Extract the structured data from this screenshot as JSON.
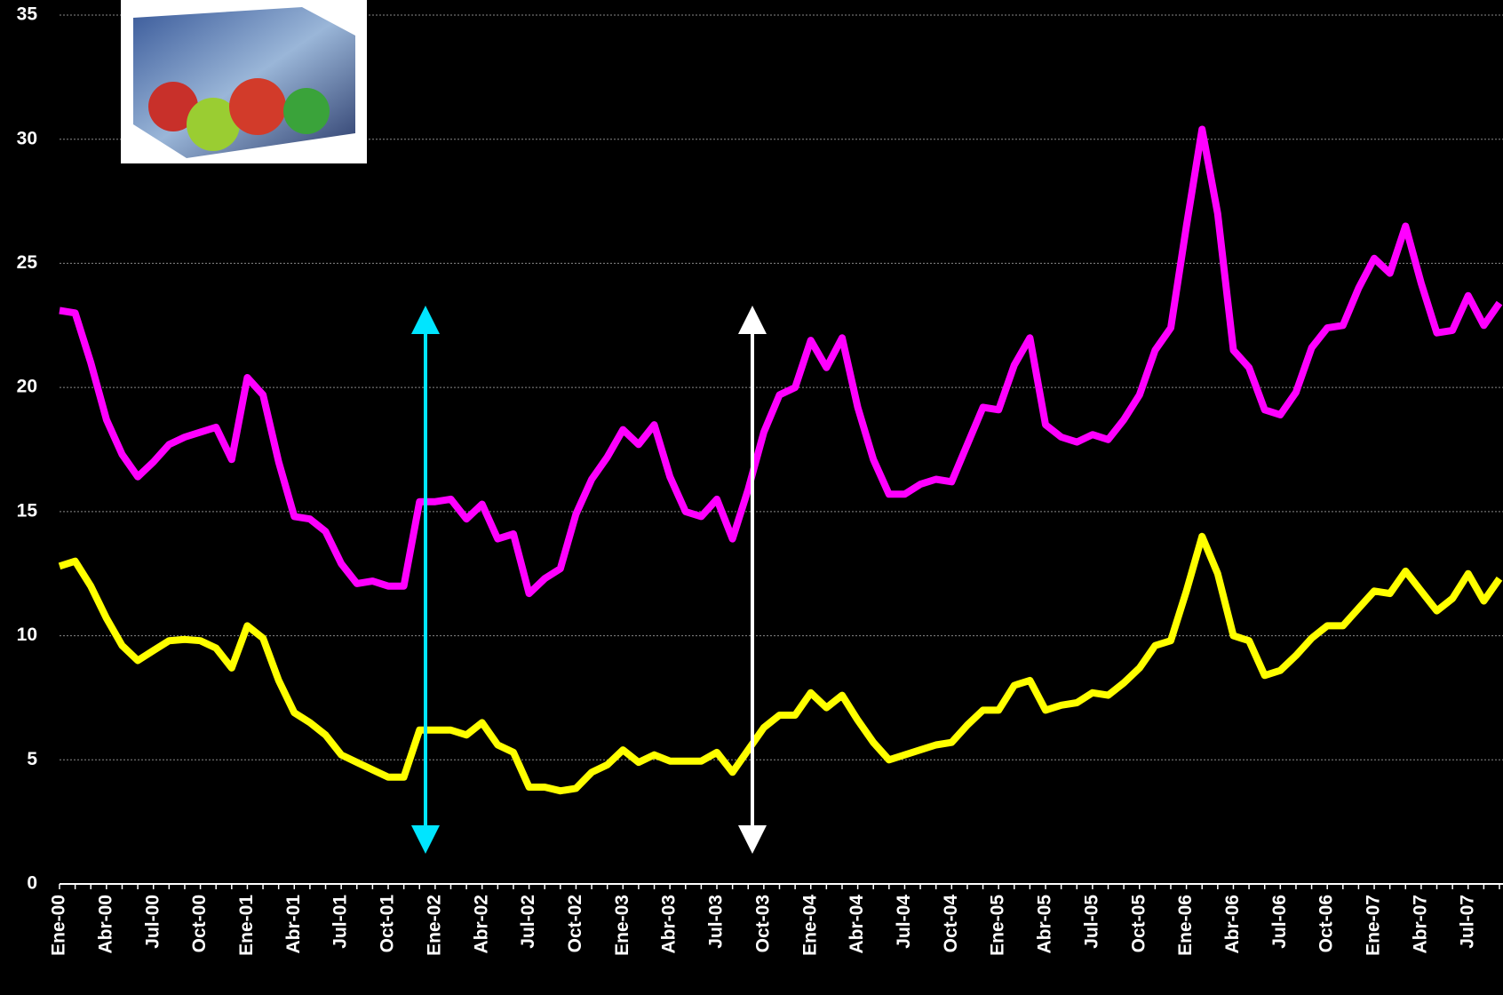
{
  "chart_data": {
    "type": "line",
    "categories": [
      "Ene-00",
      null,
      null,
      "Abr-00",
      null,
      null,
      "Jul-00",
      null,
      null,
      "Oct-00",
      null,
      null,
      "Ene-01",
      null,
      null,
      "Abr-01",
      null,
      null,
      "Jul-01",
      null,
      null,
      "Oct-01",
      null,
      null,
      "Ene-02",
      null,
      null,
      "Abr-02",
      null,
      null,
      "Jul-02",
      null,
      null,
      "Oct-02",
      null,
      null,
      "Ene-03",
      null,
      null,
      "Abr-03",
      null,
      null,
      "Jul-03",
      null,
      null,
      "Oct-03",
      null,
      null,
      "Ene-04",
      null,
      null,
      "Abr-04",
      null,
      null,
      "Jul-04",
      null,
      null,
      "Oct-04",
      null,
      null,
      "Ene-05",
      null,
      null,
      "Abr-05",
      null,
      null,
      "Jul-05",
      null,
      null,
      "Oct-05",
      null,
      null,
      "Ene-06",
      null,
      null,
      "Abr-06",
      null,
      null,
      "Jul-06",
      null,
      null,
      "Oct-06",
      null,
      null,
      "Ene-07",
      null,
      null,
      "Abr-07",
      null,
      null,
      "Jul-07",
      null,
      null
    ],
    "series": [
      {
        "color": "#ff00ff",
        "values": [
          23.1,
          23.0,
          21.0,
          18.7,
          17.3,
          16.4,
          17.0,
          17.7,
          18.0,
          18.2,
          18.4,
          17.1,
          20.4,
          19.7,
          17.0,
          14.8,
          14.7,
          14.2,
          12.9,
          12.1,
          12.2,
          12.0,
          12.0,
          15.4,
          15.4,
          15.5,
          14.7,
          15.3,
          13.9,
          14.1,
          11.7,
          12.3,
          12.7,
          14.9,
          16.3,
          17.2,
          18.3,
          17.7,
          18.5,
          16.4,
          15.0,
          14.8,
          15.5,
          13.9,
          15.9,
          18.2,
          19.7,
          20.0,
          21.9,
          20.8,
          22.0,
          19.2,
          17.1,
          15.7,
          15.7,
          16.1,
          16.3,
          16.2,
          17.7,
          19.2,
          19.1,
          20.9,
          22.0,
          18.5,
          18.0,
          17.8,
          18.1,
          17.9,
          18.7,
          19.7,
          21.5,
          22.4,
          26.5,
          30.4,
          27.0,
          21.5,
          20.8,
          19.1,
          18.9,
          19.8,
          21.6,
          22.4,
          22.5,
          24.0,
          25.2,
          24.6,
          26.5,
          24.2,
          22.2,
          22.3,
          23.7,
          22.5,
          23.4
        ]
      },
      {
        "color": "#ffff00",
        "values": [
          12.8,
          13.0,
          12.0,
          10.7,
          9.6,
          9.0,
          9.4,
          9.8,
          9.85,
          9.8,
          9.5,
          8.7,
          10.4,
          9.9,
          8.2,
          6.9,
          6.5,
          6.0,
          5.2,
          4.9,
          4.6,
          4.3,
          4.3,
          6.2,
          6.2,
          6.2,
          6.0,
          6.5,
          5.6,
          5.3,
          3.9,
          3.9,
          3.75,
          3.85,
          4.5,
          4.8,
          5.4,
          4.9,
          5.2,
          4.95,
          4.95,
          4.95,
          5.3,
          4.5,
          5.4,
          6.3,
          6.8,
          6.8,
          7.7,
          7.1,
          7.6,
          6.6,
          5.7,
          5.0,
          5.2,
          5.4,
          5.6,
          5.7,
          6.4,
          7.0,
          7.0,
          8.0,
          8.2,
          7.0,
          7.2,
          7.3,
          7.7,
          7.6,
          8.1,
          8.7,
          9.6,
          9.8,
          11.8,
          14.0,
          12.5,
          10.0,
          9.8,
          8.4,
          8.6,
          9.2,
          9.9,
          10.4,
          10.4,
          11.1,
          11.8,
          11.7,
          12.6,
          11.8,
          11.0,
          11.5,
          12.5,
          11.4,
          12.3
        ]
      }
    ],
    "ylim": [
      0,
      35
    ],
    "yticks": [
      0,
      5,
      10,
      15,
      20,
      25,
      30,
      35
    ],
    "grid": true
  }
}
